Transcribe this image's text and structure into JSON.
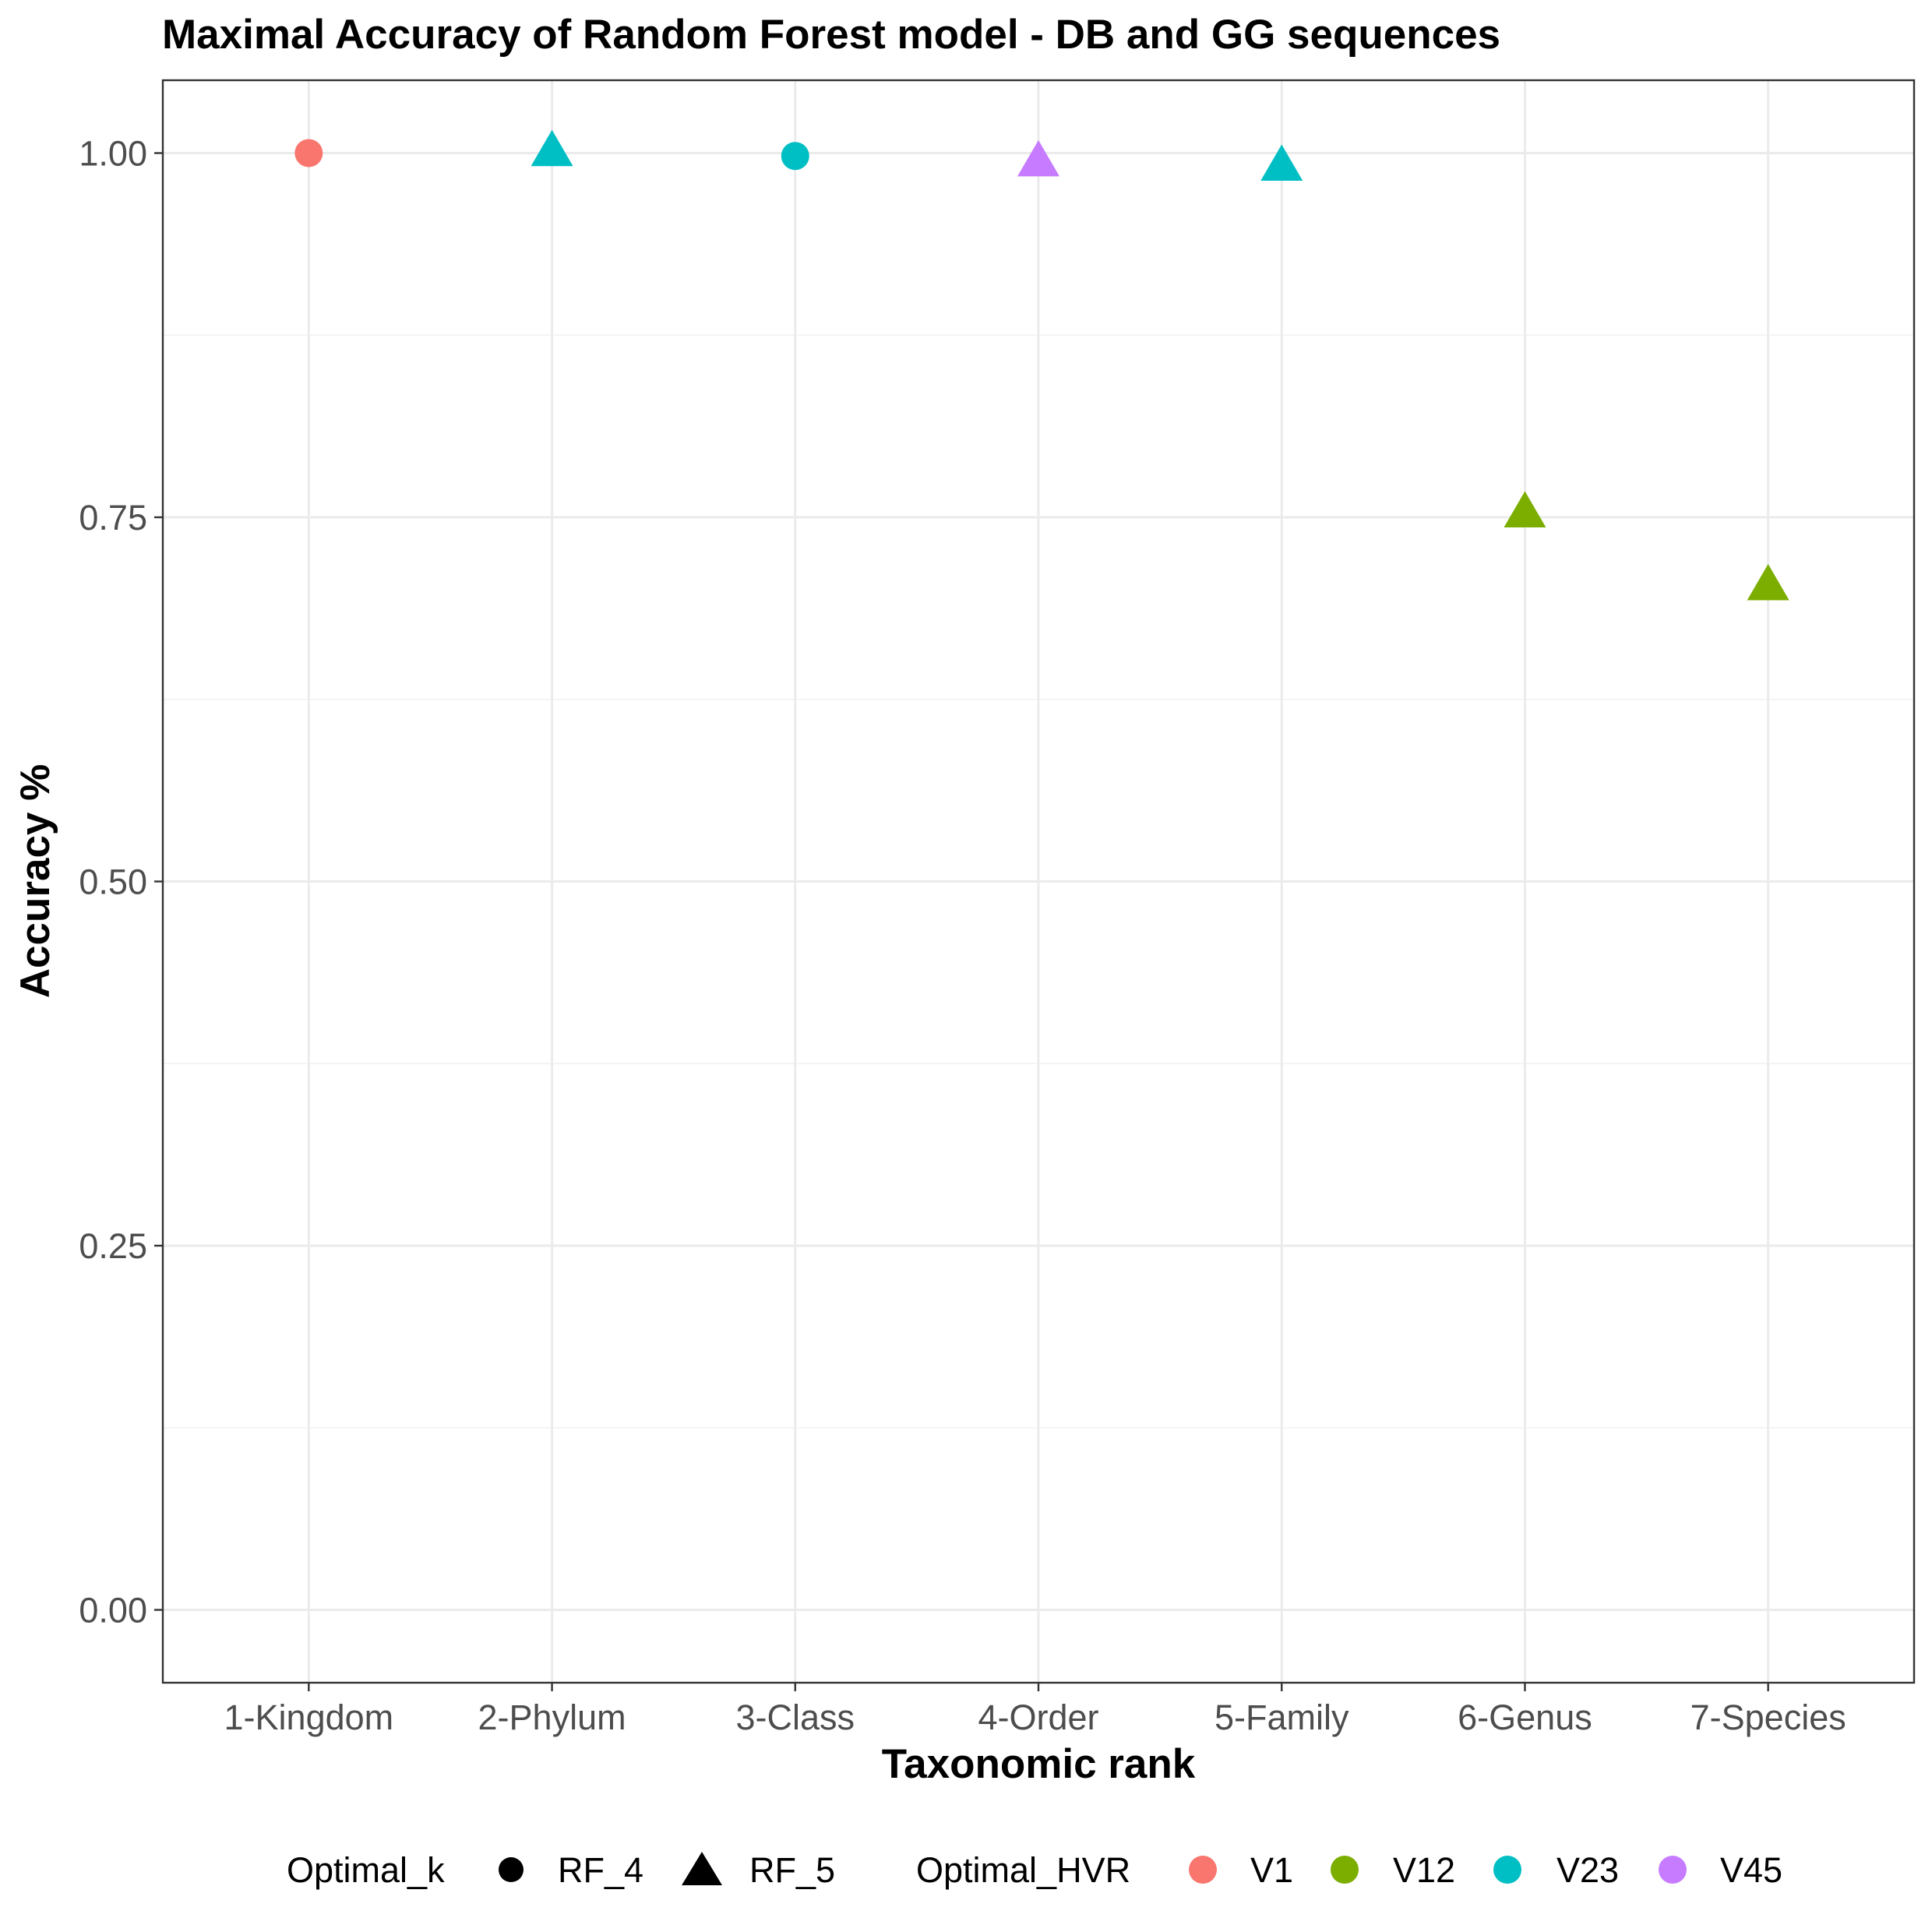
{
  "chart_data": {
    "type": "scatter",
    "title": "Maximal Accuracy of Random Forest model - DB and GG sequences",
    "xlabel": "Taxonomic rank",
    "ylabel": "Accuracy %",
    "categories": [
      "1-Kingdom",
      "2-Phylum",
      "3-Class",
      "4-Order",
      "5-Family",
      "6-Genus",
      "7-Species"
    ],
    "ylim": [
      -0.05,
      1.05
    ],
    "yticks": [
      0.0,
      0.25,
      0.5,
      0.75,
      1.0
    ],
    "ytick_labels": [
      "0.00",
      "0.25",
      "0.50",
      "0.75",
      "1.00"
    ],
    "grid": true,
    "points": [
      {
        "x": "1-Kingdom",
        "y": 1.0,
        "k": "RF_4",
        "hvr": "V1"
      },
      {
        "x": "2-Phylum",
        "y": 1.0,
        "k": "RF_5",
        "hvr": "V23"
      },
      {
        "x": "3-Class",
        "y": 0.998,
        "k": "RF_4",
        "hvr": "V23"
      },
      {
        "x": "4-Order",
        "y": 0.993,
        "k": "RF_5",
        "hvr": "V45"
      },
      {
        "x": "5-Family",
        "y": 0.99,
        "k": "RF_5",
        "hvr": "V23"
      },
      {
        "x": "6-Genus",
        "y": 0.752,
        "k": "RF_5",
        "hvr": "V12"
      },
      {
        "x": "7-Species",
        "y": 0.702,
        "k": "RF_5",
        "hvr": "V12"
      }
    ],
    "legend": {
      "position": "bottom",
      "shape_title": "Optimal_k",
      "shapes": [
        {
          "label": "RF_4",
          "shape": "circle"
        },
        {
          "label": "RF_5",
          "shape": "triangle"
        }
      ],
      "color_title": "Optimal_HVR",
      "colors": [
        {
          "label": "V1",
          "color": "#F8766D"
        },
        {
          "label": "V12",
          "color": "#7CAE00"
        },
        {
          "label": "V23",
          "color": "#00BFC4"
        },
        {
          "label": "V45",
          "color": "#C77CFF"
        }
      ]
    }
  }
}
